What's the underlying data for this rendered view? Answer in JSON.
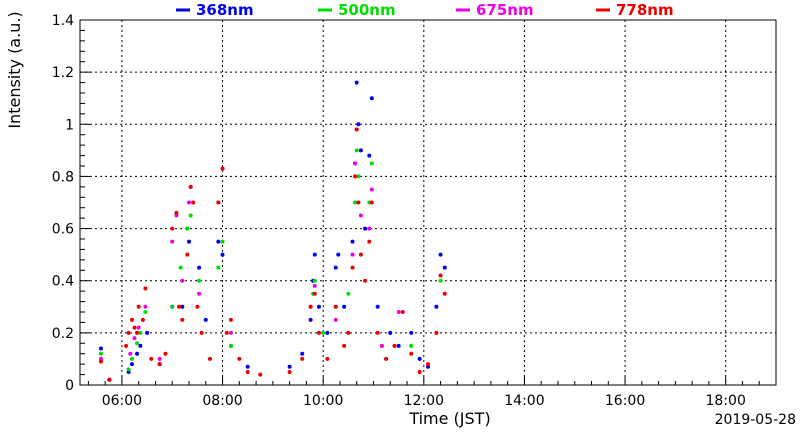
{
  "chart_data": {
    "type": "scatter",
    "title": "",
    "xlabel": "Time (JST)",
    "ylabel": "Intensity (a.u.)",
    "date_label": "2019-05-28",
    "xlim": [
      "05:10",
      "19:00"
    ],
    "ylim": [
      0,
      1.4
    ],
    "grid": true,
    "legend_position": "top",
    "x_ticks": [
      "06:00",
      "08:00",
      "10:00",
      "12:00",
      "14:00",
      "16:00",
      "18:00"
    ],
    "y_ticks": [
      "0",
      "0.2",
      "0.4",
      "0.6",
      "0.8",
      "1",
      "1.2",
      "1.4"
    ],
    "series": [
      {
        "name": "368nm",
        "color": "#0000ee",
        "points": [
          [
            "05:35",
            0.14
          ],
          [
            "05:45",
            0.02
          ],
          [
            "06:08",
            0.05
          ],
          [
            "06:12",
            0.08
          ],
          [
            "06:18",
            0.12
          ],
          [
            "06:22",
            0.15
          ],
          [
            "06:30",
            0.2
          ],
          [
            "06:45",
            0.08
          ],
          [
            "07:00",
            0.3
          ],
          [
            "07:12",
            0.3
          ],
          [
            "07:20",
            0.55
          ],
          [
            "07:32",
            0.45
          ],
          [
            "07:40",
            0.25
          ],
          [
            "07:55",
            0.55
          ],
          [
            "08:00",
            0.5
          ],
          [
            "08:10",
            0.15
          ],
          [
            "08:30",
            0.07
          ],
          [
            "09:20",
            0.07
          ],
          [
            "09:35",
            0.12
          ],
          [
            "09:45",
            0.25
          ],
          [
            "09:48",
            0.4
          ],
          [
            "09:50",
            0.5
          ],
          [
            "09:55",
            0.3
          ],
          [
            "10:05",
            0.2
          ],
          [
            "10:15",
            0.45
          ],
          [
            "10:18",
            0.5
          ],
          [
            "10:25",
            0.3
          ],
          [
            "10:35",
            0.55
          ],
          [
            "10:38",
            0.85
          ],
          [
            "10:40",
            1.16
          ],
          [
            "10:42",
            1.0
          ],
          [
            "10:45",
            0.9
          ],
          [
            "10:50",
            0.6
          ],
          [
            "10:55",
            0.88
          ],
          [
            "10:58",
            1.1
          ],
          [
            "11:05",
            0.3
          ],
          [
            "11:20",
            0.2
          ],
          [
            "11:30",
            0.15
          ],
          [
            "11:45",
            0.2
          ],
          [
            "11:55",
            0.1
          ],
          [
            "12:05",
            0.07
          ],
          [
            "12:15",
            0.3
          ],
          [
            "12:20",
            0.5
          ],
          [
            "12:25",
            0.45
          ]
        ]
      },
      {
        "name": "500nm",
        "color": "#00dd00",
        "points": [
          [
            "05:35",
            0.12
          ],
          [
            "06:08",
            0.06
          ],
          [
            "06:12",
            0.1
          ],
          [
            "06:18",
            0.16
          ],
          [
            "06:22",
            0.2
          ],
          [
            "06:28",
            0.28
          ],
          [
            "06:45",
            0.1
          ],
          [
            "07:00",
            0.3
          ],
          [
            "07:10",
            0.45
          ],
          [
            "07:18",
            0.6
          ],
          [
            "07:22",
            0.65
          ],
          [
            "07:32",
            0.4
          ],
          [
            "07:55",
            0.45
          ],
          [
            "08:00",
            0.55
          ],
          [
            "08:10",
            0.15
          ],
          [
            "09:48",
            0.35
          ],
          [
            "09:50",
            0.4
          ],
          [
            "10:00",
            0.2
          ],
          [
            "10:15",
            0.3
          ],
          [
            "10:30",
            0.35
          ],
          [
            "10:38",
            0.7
          ],
          [
            "10:40",
            0.9
          ],
          [
            "10:42",
            0.8
          ],
          [
            "10:55",
            0.7
          ],
          [
            "10:58",
            0.85
          ],
          [
            "11:10",
            0.15
          ],
          [
            "11:45",
            0.15
          ],
          [
            "12:20",
            0.4
          ]
        ]
      },
      {
        "name": "675nm",
        "color": "#ee00ee",
        "points": [
          [
            "05:35",
            0.1
          ],
          [
            "06:10",
            0.12
          ],
          [
            "06:15",
            0.18
          ],
          [
            "06:20",
            0.22
          ],
          [
            "06:28",
            0.3
          ],
          [
            "06:45",
            0.1
          ],
          [
            "07:00",
            0.55
          ],
          [
            "07:05",
            0.65
          ],
          [
            "07:12",
            0.4
          ],
          [
            "07:20",
            0.7
          ],
          [
            "07:22",
            0.76
          ],
          [
            "07:32",
            0.35
          ],
          [
            "07:55",
            0.7
          ],
          [
            "08:00",
            0.83
          ],
          [
            "08:10",
            0.2
          ],
          [
            "09:45",
            0.3
          ],
          [
            "09:50",
            0.38
          ],
          [
            "10:15",
            0.25
          ],
          [
            "10:35",
            0.5
          ],
          [
            "10:38",
            0.85
          ],
          [
            "10:40",
            0.98
          ],
          [
            "10:45",
            0.65
          ],
          [
            "10:55",
            0.6
          ],
          [
            "10:58",
            0.75
          ],
          [
            "11:10",
            0.15
          ],
          [
            "11:30",
            0.28
          ],
          [
            "12:20",
            0.42
          ]
        ]
      },
      {
        "name": "778nm",
        "color": "#ee0000",
        "points": [
          [
            "05:35",
            0.09
          ],
          [
            "05:45",
            0.02
          ],
          [
            "06:05",
            0.15
          ],
          [
            "06:08",
            0.2
          ],
          [
            "06:12",
            0.25
          ],
          [
            "06:15",
            0.22
          ],
          [
            "06:18",
            0.2
          ],
          [
            "06:20",
            0.3
          ],
          [
            "06:25",
            0.25
          ],
          [
            "06:28",
            0.37
          ],
          [
            "06:35",
            0.1
          ],
          [
            "06:45",
            0.08
          ],
          [
            "06:52",
            0.12
          ],
          [
            "07:00",
            0.6
          ],
          [
            "07:05",
            0.66
          ],
          [
            "07:08",
            0.3
          ],
          [
            "07:12",
            0.25
          ],
          [
            "07:18",
            0.5
          ],
          [
            "07:22",
            0.76
          ],
          [
            "07:25",
            0.7
          ],
          [
            "07:30",
            0.3
          ],
          [
            "07:35",
            0.2
          ],
          [
            "07:45",
            0.1
          ],
          [
            "07:55",
            0.7
          ],
          [
            "08:00",
            0.83
          ],
          [
            "08:05",
            0.2
          ],
          [
            "08:10",
            0.25
          ],
          [
            "08:20",
            0.1
          ],
          [
            "08:30",
            0.05
          ],
          [
            "08:45",
            0.04
          ],
          [
            "09:20",
            0.05
          ],
          [
            "09:35",
            0.1
          ],
          [
            "09:45",
            0.3
          ],
          [
            "09:50",
            0.35
          ],
          [
            "09:55",
            0.2
          ],
          [
            "10:05",
            0.1
          ],
          [
            "10:15",
            0.3
          ],
          [
            "10:25",
            0.15
          ],
          [
            "10:30",
            0.2
          ],
          [
            "10:35",
            0.45
          ],
          [
            "10:38",
            0.8
          ],
          [
            "10:40",
            0.98
          ],
          [
            "10:42",
            0.7
          ],
          [
            "10:45",
            0.5
          ],
          [
            "10:50",
            0.4
          ],
          [
            "10:55",
            0.55
          ],
          [
            "10:58",
            0.7
          ],
          [
            "11:05",
            0.2
          ],
          [
            "11:15",
            0.1
          ],
          [
            "11:25",
            0.15
          ],
          [
            "11:35",
            0.28
          ],
          [
            "11:45",
            0.12
          ],
          [
            "11:55",
            0.05
          ],
          [
            "12:05",
            0.08
          ],
          [
            "12:15",
            0.2
          ],
          [
            "12:20",
            0.42
          ],
          [
            "12:25",
            0.35
          ]
        ]
      }
    ]
  }
}
